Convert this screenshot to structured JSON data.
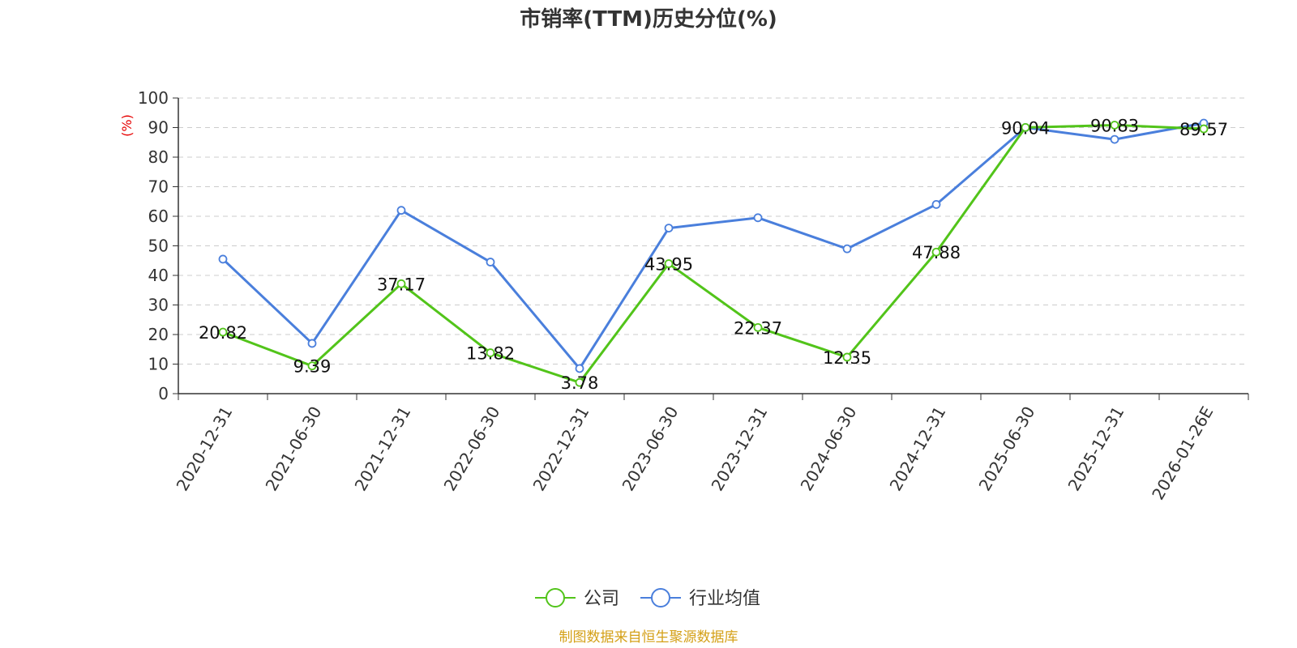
{
  "chart_data": {
    "type": "line",
    "title": "市销率(TTM)历史分位(%)",
    "ylabel": "(%)",
    "xlabel": "",
    "ylim": [
      0,
      100
    ],
    "yticks": [
      0,
      10,
      20,
      30,
      40,
      50,
      60,
      70,
      80,
      90,
      100
    ],
    "grid": "horizontal-dashed",
    "legend_position": "bottom-center",
    "categories": [
      "2020-12-31",
      "2021-06-30",
      "2021-12-31",
      "2022-06-30",
      "2022-12-31",
      "2023-06-30",
      "2023-12-31",
      "2024-06-30",
      "2024-12-31",
      "2025-06-30",
      "2025-12-31",
      "2026-01-26E"
    ],
    "series": [
      {
        "name": "公司",
        "color": "#52c41a",
        "values": [
          20.82,
          9.39,
          37.17,
          13.82,
          3.78,
          43.95,
          22.37,
          12.35,
          47.88,
          90.04,
          90.83,
          89.57
        ],
        "labels": [
          "20.82",
          "9.39",
          "37.17",
          "13.82",
          "3.78",
          "43.95",
          "22.37",
          "12.35",
          "47.88",
          "90.04",
          "90.83",
          "89.57"
        ]
      },
      {
        "name": "行业均值",
        "color": "#4a7fdc",
        "values": [
          45.5,
          17,
          62,
          44.5,
          8.5,
          56,
          59.5,
          49,
          64,
          90,
          86,
          91.5
        ]
      }
    ],
    "source": "制图数据来自恒生聚源数据库"
  },
  "colors": {
    "axis": "#333333",
    "grid": "#cccccc",
    "ylabel": "#e60000",
    "source": "#d4a017"
  }
}
